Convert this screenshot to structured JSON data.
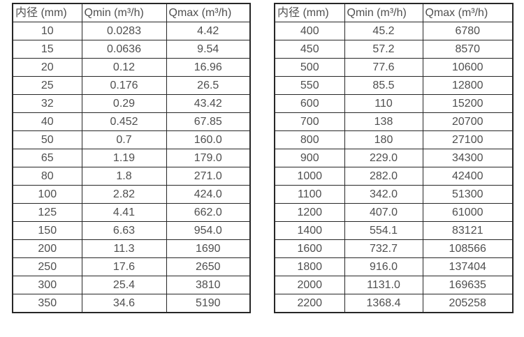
{
  "colors": {
    "border": "#262626",
    "text": "#4f4f4f",
    "background": "#ffffff"
  },
  "tables": [
    {
      "name": "flow-spec-table-small-diameters",
      "headers": [
        "内径 (mm)",
        "Qmin (m³/h)",
        "Qmax (m³/h)"
      ],
      "rows": [
        [
          "10",
          "0.0283",
          "4.42"
        ],
        [
          "15",
          "0.0636",
          "9.54"
        ],
        [
          "20",
          "0.12",
          "16.96"
        ],
        [
          "25",
          "0.176",
          "26.5"
        ],
        [
          "32",
          "0.29",
          "43.42"
        ],
        [
          "40",
          "0.452",
          "67.85"
        ],
        [
          "50",
          "0.7",
          "160.0"
        ],
        [
          "65",
          "1.19",
          "179.0"
        ],
        [
          "80",
          "1.8",
          "271.0"
        ],
        [
          "100",
          "2.82",
          "424.0"
        ],
        [
          "125",
          "4.41",
          "662.0"
        ],
        [
          "150",
          "6.63",
          "954.0"
        ],
        [
          "200",
          "11.3",
          "1690"
        ],
        [
          "250",
          "17.6",
          "2650"
        ],
        [
          "300",
          "25.4",
          "3810"
        ],
        [
          "350",
          "34.6",
          "5190"
        ]
      ]
    },
    {
      "name": "flow-spec-table-large-diameters",
      "headers": [
        "内径 (mm)",
        "Qmin (m³/h)",
        "Qmax (m³/h)"
      ],
      "rows": [
        [
          "400",
          "45.2",
          "6780"
        ],
        [
          "450",
          "57.2",
          "8570"
        ],
        [
          "500",
          "77.6",
          "10600"
        ],
        [
          "550",
          "85.5",
          "12800"
        ],
        [
          "600",
          "110",
          "15200"
        ],
        [
          "700",
          "138",
          "20700"
        ],
        [
          "800",
          "180",
          "27100"
        ],
        [
          "900",
          "229.0",
          "34300"
        ],
        [
          "1000",
          "282.0",
          "42400"
        ],
        [
          "1100",
          "342.0",
          "51300"
        ],
        [
          "1200",
          "407.0",
          "61000"
        ],
        [
          "1400",
          "554.1",
          "83121"
        ],
        [
          "1600",
          "732.7",
          "108566"
        ],
        [
          "1800",
          "916.0",
          "137404"
        ],
        [
          "2000",
          "1131.0",
          "169635"
        ],
        [
          "2200",
          "1368.4",
          "205258"
        ]
      ]
    }
  ]
}
